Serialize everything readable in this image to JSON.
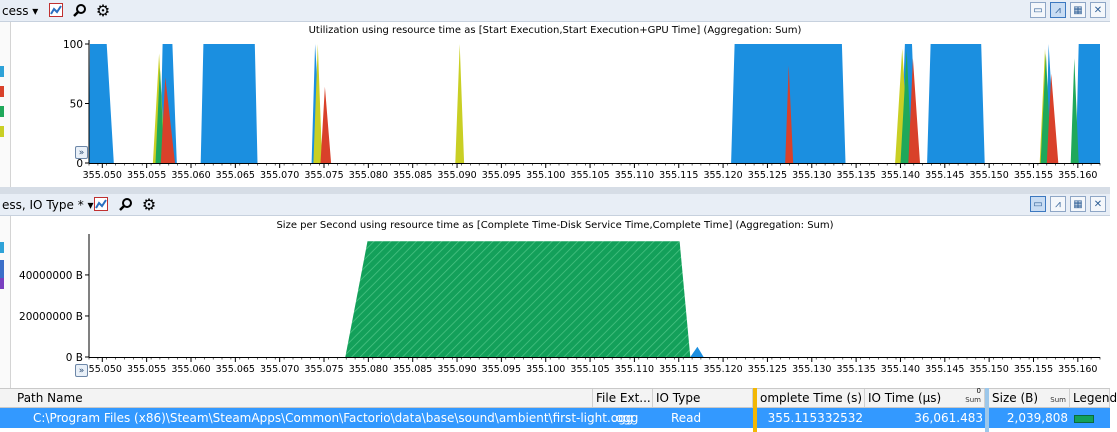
{
  "top_panel": {
    "combo_label": "cess",
    "title": "Utilization using resource time as [Start Execution,Start Execution+GPU Time] (Aggregation: Sum)",
    "legend_colors": [
      "#2ea2d8",
      "#d9412a",
      "#1fa85a",
      "#c9cf24"
    ]
  },
  "bottom_panel": {
    "combo_label": "ess, IO Type *",
    "title": "Size per Second using resource time as [Complete Time-Disk Service Time,Complete Time] (Aggregation: Sum)",
    "legend_colors": [
      "#2ea2d8",
      "#7a3fc0"
    ]
  },
  "icons": {
    "chart_type": "chart-icon",
    "search": "magnifier-icon",
    "settings": "gear-icon",
    "views": [
      "graph-view-icon",
      "graph-and-table-icon",
      "table-view-icon",
      "close-icon"
    ]
  },
  "chart_data": [
    {
      "type": "area",
      "title": "Utilization using resource time as [Start Execution,Start Execution+GPU Time] (Aggregation: Sum)",
      "x_ticks": [
        "355.050",
        "355.055",
        "355.060",
        "355.065",
        "355.070",
        "355.075",
        "355.080",
        "355.085",
        "355.090",
        "355.095",
        "355.100",
        "355.105",
        "355.110",
        "355.115",
        "355.120",
        "355.125",
        "355.130",
        "355.135",
        "355.140",
        "355.145",
        "355.150",
        "355.155",
        "355.160"
      ],
      "xlim": [
        355.0485,
        355.1625
      ],
      "y_ticks": [
        "0",
        "50",
        "100"
      ],
      "ylim": [
        0,
        100
      ],
      "series": [
        {
          "color": "#1b8fe0",
          "points": [
            [
              355.0485,
              0
            ],
            [
              355.0486,
              100
            ],
            [
              355.0505,
              100
            ],
            [
              355.0513,
              0
            ],
            [
              355.0565,
              0
            ],
            [
              355.0568,
              100
            ],
            [
              355.0579,
              100
            ],
            [
              355.0584,
              0
            ],
            [
              355.0611,
              0
            ],
            [
              355.0614,
              100
            ],
            [
              355.0672,
              100
            ],
            [
              355.0675,
              0
            ],
            [
              355.0736,
              0
            ],
            [
              355.074,
              100
            ],
            [
              355.0748,
              0
            ],
            [
              355.1209,
              0
            ],
            [
              355.1213,
              100
            ],
            [
              355.1334,
              100
            ],
            [
              355.1338,
              0
            ],
            [
              355.14,
              0
            ],
            [
              355.1405,
              100
            ],
            [
              355.1413,
              100
            ],
            [
              355.1418,
              0
            ],
            [
              355.143,
              0
            ],
            [
              355.1434,
              100
            ],
            [
              355.1491,
              100
            ],
            [
              355.1495,
              0
            ],
            [
              355.1564,
              0
            ],
            [
              355.1567,
              100
            ],
            [
              355.1575,
              0
            ],
            [
              355.1596,
              0
            ],
            [
              355.1598,
              10
            ],
            [
              355.1601,
              100
            ],
            [
              355.1625,
              100
            ]
          ]
        },
        {
          "color": "#c9cf24",
          "points": [
            [
              355.0557,
              0
            ],
            [
              355.0564,
              92
            ],
            [
              355.0571,
              0
            ],
            [
              355.0738,
              0
            ],
            [
              355.0743,
              100
            ],
            [
              355.0748,
              0
            ],
            [
              355.0898,
              0
            ],
            [
              355.0903,
              100
            ],
            [
              355.0908,
              0
            ],
            [
              355.1394,
              0
            ],
            [
              355.1402,
              96
            ],
            [
              355.141,
              0
            ],
            [
              355.1557,
              0
            ],
            [
              355.1563,
              96
            ],
            [
              355.157,
              0
            ]
          ]
        },
        {
          "color": "#1fa85a",
          "points": [
            [
              355.056,
              0
            ],
            [
              355.0565,
              80
            ],
            [
              355.057,
              0
            ],
            [
              355.14,
              0
            ],
            [
              355.1407,
              95
            ],
            [
              355.1413,
              0
            ],
            [
              355.1558,
              0
            ],
            [
              355.1564,
              92
            ],
            [
              355.157,
              0
            ],
            [
              355.1592,
              0
            ],
            [
              355.1596,
              88
            ],
            [
              355.1601,
              0
            ]
          ]
        },
        {
          "color": "#d9412a",
          "points": [
            [
              355.0566,
              0
            ],
            [
              355.0571,
              72
            ],
            [
              355.0582,
              0
            ],
            [
              355.0746,
              0
            ],
            [
              355.0751,
              64
            ],
            [
              355.0758,
              0
            ],
            [
              355.127,
              0
            ],
            [
              355.1274,
              82
            ],
            [
              355.1279,
              0
            ],
            [
              355.1409,
              0
            ],
            [
              355.1414,
              88
            ],
            [
              355.1422,
              0
            ],
            [
              355.1565,
              0
            ],
            [
              355.157,
              75
            ],
            [
              355.1578,
              0
            ]
          ]
        }
      ]
    },
    {
      "type": "area",
      "title": "Size per Second using resource time as [Complete Time-Disk Service Time,Complete Time] (Aggregation: Sum)",
      "x_ticks": [
        "355.050",
        "355.055",
        "355.060",
        "355.065",
        "355.070",
        "355.075",
        "355.080",
        "355.085",
        "355.090",
        "355.095",
        "355.100",
        "355.105",
        "355.110",
        "355.115",
        "355.120",
        "355.125",
        "355.130",
        "355.135",
        "355.140",
        "355.145",
        "355.150",
        "355.155",
        "355.160"
      ],
      "xlim": [
        355.0485,
        355.1625
      ],
      "y_ticks": [
        "0 B",
        "20000000 B",
        "40000000 B"
      ],
      "y_tick_values": [
        0,
        20000000,
        40000000
      ],
      "ylim": [
        0,
        58000000
      ],
      "series": [
        {
          "color": "#13a05a",
          "hatch": true,
          "points": [
            [
              355.0774,
              0
            ],
            [
              355.0799,
              56400000
            ],
            [
              355.1151,
              56400000
            ],
            [
              355.1163,
              0
            ]
          ]
        },
        {
          "color": "#1b8fe0",
          "points": [
            [
              355.1163,
              0
            ],
            [
              355.1171,
              5000000
            ],
            [
              355.1178,
              0
            ]
          ]
        }
      ]
    }
  ],
  "table": {
    "columns": [
      {
        "label": "Path Name",
        "sum": ""
      },
      {
        "label": "File Ext...",
        "sum": ""
      },
      {
        "label": "IO Type",
        "sum": ""
      },
      {
        "label": "omplete Time (s)",
        "sum": ""
      },
      {
        "label": "IO Time (µs)",
        "sum": "Sum"
      },
      {
        "label": "Size (B)",
        "sum": "Sum"
      },
      {
        "label": "Legend",
        "sum": ""
      }
    ],
    "rows": [
      {
        "path": "C:\\Program Files (x86)\\Steam\\SteamApps\\Common\\Factorio\\data\\base\\sound\\ambient\\first-light.ogg",
        "ext": ".ogg",
        "io_type": "Read",
        "complete_time": "355.115332532",
        "io_time": "36,061.483",
        "size": "2,039,808",
        "legend_color": "#13a05a"
      }
    ],
    "sort_indicator": "0"
  }
}
